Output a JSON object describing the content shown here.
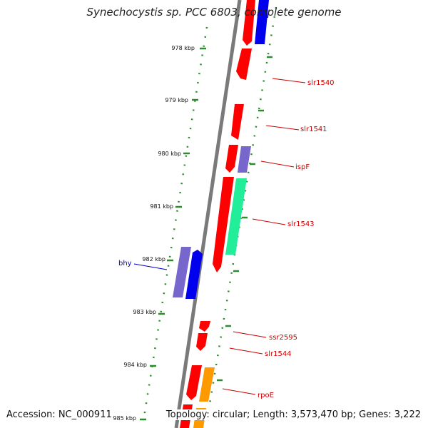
{
  "title": "Synechocystis sp. PCC 6803, complete genome",
  "footer": {
    "accession": "Accession: NC_000911",
    "summary": "Topology: circular; Length: 3,573,470 bp; Genes: 3,222"
  },
  "colors": {
    "background": "#ffffff",
    "backbone": "#7a7a7a",
    "scale_dots": "#2e8b2e",
    "red_gene": "#ff0000",
    "blue_gene": "#0000ee",
    "purple_gene": "#7766cc",
    "green_gene": "#22ee99",
    "orange_gene": "#ff9900",
    "right_label": "#cc0000",
    "left_label": "#0000cc"
  },
  "scale": [
    {
      "label": "978 kbp"
    },
    {
      "label": "979 kbp"
    },
    {
      "label": "980 kbp"
    },
    {
      "label": "981 kbp"
    },
    {
      "label": "982 kbp"
    },
    {
      "label": "983 kbp"
    },
    {
      "label": "984 kbp"
    },
    {
      "label": "985 kbp"
    }
  ],
  "gene_labels": [
    {
      "text": "slr1540",
      "color": "#cc0000"
    },
    {
      "text": "slr1541",
      "color": "#cc0000"
    },
    {
      "text": "ispF",
      "color": "#cc0000"
    },
    {
      "text": "slr1543",
      "color": "#cc0000"
    },
    {
      "text": "bhy",
      "color": "#0000cc"
    },
    {
      "text": "ssr2595",
      "color": "#cc0000"
    },
    {
      "text": "slr1544",
      "color": "#cc0000"
    },
    {
      "text": "rpoE",
      "color": "#cc0000"
    }
  ]
}
